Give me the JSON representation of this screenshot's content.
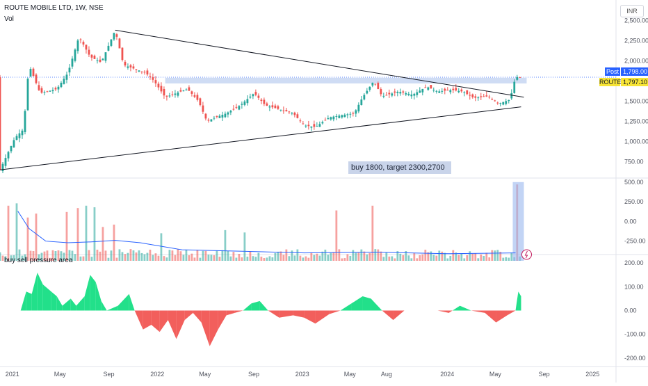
{
  "legend": {
    "title": "ROUTE MOBILE LTD, 1W, NSE",
    "volume_label": "Vol",
    "indicator_label": "buy sell pressure area"
  },
  "currency": "INR",
  "annotation": "buy 1800, target 2300,2700",
  "price_tags": {
    "post_label": "Post",
    "post_value": "1,798.00",
    "symbol_label": "ROUTE",
    "symbol_value": "1,797.10"
  },
  "colors": {
    "up": "#26a69a",
    "down": "#ef5350",
    "up_area": "#22e08a",
    "down_area": "#f25f5c",
    "line": "#2962ff",
    "annotation_bg": "#c9d4ea"
  },
  "chart_data": [
    {
      "type": "candlestick",
      "title": "ROUTE MOBILE LTD, 1W, NSE",
      "y_ticks": [
        "2,500.00",
        "2,250.00",
        "2,000.00",
        "1,750.00",
        "1,500.00",
        "1,250.00",
        "1,000.00",
        "750.00"
      ],
      "ylim": [
        600,
        2650
      ],
      "x_ticks": [
        "2021",
        "May",
        "Sep",
        "2022",
        "May",
        "Sep",
        "2023",
        "May",
        "Aug",
        "2024",
        "May",
        "Sep",
        "2025"
      ],
      "ohlc_points": [
        [
          "2020-12-01",
          650
        ],
        [
          "2021-01-08",
          1050
        ],
        [
          "2021-01-29",
          1150
        ],
        [
          "2021-02-12",
          1950
        ],
        [
          "2021-03-12",
          1600
        ],
        [
          "2021-04-23",
          1650
        ],
        [
          "2021-05-21",
          1850
        ],
        [
          "2021-06-18",
          2300
        ],
        [
          "2021-07-16",
          2050
        ],
        [
          "2021-08-13",
          1980
        ],
        [
          "2021-09-17",
          2380
        ],
        [
          "2021-10-08",
          1950
        ],
        [
          "2021-12-03",
          1850
        ],
        [
          "2021-12-24",
          1750
        ],
        [
          "2022-01-21",
          1550
        ],
        [
          "2022-03-18",
          1650
        ],
        [
          "2022-04-15",
          1500
        ],
        [
          "2022-05-06",
          1250
        ],
        [
          "2022-05-27",
          1300
        ],
        [
          "2022-06-24",
          1350
        ],
        [
          "2022-07-29",
          1450
        ],
        [
          "2022-09-02",
          1600
        ],
        [
          "2022-09-30",
          1450
        ],
        [
          "2022-11-04",
          1400
        ],
        [
          "2022-12-09",
          1350
        ],
        [
          "2023-01-06",
          1200
        ],
        [
          "2023-02-03",
          1180
        ],
        [
          "2023-03-10",
          1300
        ],
        [
          "2023-04-14",
          1330
        ],
        [
          "2023-05-12",
          1350
        ],
        [
          "2023-06-02",
          1550
        ],
        [
          "2023-06-30",
          1750
        ],
        [
          "2023-07-21",
          1560
        ],
        [
          "2023-09-01",
          1620
        ],
        [
          "2023-10-06",
          1580
        ],
        [
          "2023-11-10",
          1680
        ],
        [
          "2023-12-08",
          1620
        ],
        [
          "2024-01-12",
          1640
        ],
        [
          "2024-02-09",
          1620
        ],
        [
          "2024-03-08",
          1540
        ],
        [
          "2024-04-12",
          1560
        ],
        [
          "2024-05-10",
          1470
        ],
        [
          "2024-06-07",
          1520
        ],
        [
          "2024-06-21",
          1800
        ],
        [
          "2024-07-05",
          1797
        ]
      ],
      "resistance_zone": [
        1720,
        1790
      ],
      "trendlines": [
        {
          "from": [
            "2021-09-17",
            2380
          ],
          "to": [
            "2024-07-12",
            1550
          ]
        },
        {
          "from": [
            "2020-12-01",
            650
          ],
          "to": [
            "2024-07-05",
            1430
          ]
        }
      ],
      "last_price": 1797.1
    },
    {
      "type": "bar",
      "name": "Vol",
      "y_ticks": [
        "500.00",
        "250.00",
        "0.00",
        "-250.00"
      ],
      "ylim": [
        -500,
        560
      ],
      "spikes": [
        [
          "2020-12-25",
          200
        ],
        [
          "2021-01-15",
          230
        ],
        [
          "2021-02-12",
          50
        ],
        [
          "2021-03-05",
          100
        ],
        [
          "2021-05-21",
          120
        ],
        [
          "2021-06-18",
          170
        ],
        [
          "2021-07-09",
          200
        ],
        [
          "2021-07-30",
          180
        ],
        [
          "2021-08-20",
          -70
        ],
        [
          "2021-09-17",
          -40
        ],
        [
          "2022-01-14",
          -150
        ],
        [
          "2022-06-24",
          -110
        ],
        [
          "2022-08-12",
          -140
        ],
        [
          "2023-03-31",
          140
        ],
        [
          "2023-06-30",
          200
        ],
        [
          "2024-06-28",
          470
        ]
      ],
      "ma_line": [
        [
          "2021-01-15",
          130
        ],
        [
          "2021-02-12",
          -90
        ],
        [
          "2021-03-26",
          -250
        ],
        [
          "2021-05-21",
          -270
        ],
        [
          "2021-07-16",
          -260
        ],
        [
          "2021-09-17",
          -240
        ],
        [
          "2021-11-19",
          -270
        ],
        [
          "2022-03-04",
          -360
        ],
        [
          "2022-08-12",
          -380
        ],
        [
          "2023-01-06",
          -400
        ],
        [
          "2023-06-30",
          -390
        ],
        [
          "2024-01-05",
          -410
        ],
        [
          "2024-06-21",
          -400
        ]
      ]
    },
    {
      "type": "area",
      "name": "buy sell pressure area",
      "y_ticks": [
        "200.00",
        "100.00",
        "0.00",
        "-100.00",
        "-200.00"
      ],
      "ylim": [
        -230,
        230
      ],
      "values": [
        [
          "2021-01-22",
          0
        ],
        [
          "2021-02-05",
          80
        ],
        [
          "2021-02-19",
          70
        ],
        [
          "2021-03-05",
          160
        ],
        [
          "2021-03-19",
          110
        ],
        [
          "2021-04-09",
          80
        ],
        [
          "2021-04-23",
          60
        ],
        [
          "2021-05-07",
          20
        ],
        [
          "2021-05-28",
          50
        ],
        [
          "2021-06-11",
          20
        ],
        [
          "2021-07-02",
          60
        ],
        [
          "2021-07-16",
          150
        ],
        [
          "2021-07-30",
          120
        ],
        [
          "2021-08-13",
          40
        ],
        [
          "2021-08-27",
          0
        ],
        [
          "2021-09-24",
          20
        ],
        [
          "2021-10-22",
          70
        ],
        [
          "2021-11-05",
          0
        ],
        [
          "2021-11-26",
          -80
        ],
        [
          "2021-12-17",
          -60
        ],
        [
          "2022-01-07",
          -90
        ],
        [
          "2022-01-28",
          -40
        ],
        [
          "2022-02-18",
          -120
        ],
        [
          "2022-03-11",
          -40
        ],
        [
          "2022-04-01",
          -10
        ],
        [
          "2022-04-22",
          -50
        ],
        [
          "2022-05-13",
          -150
        ],
        [
          "2022-06-03",
          -80
        ],
        [
          "2022-06-24",
          -20
        ],
        [
          "2022-07-15",
          -10
        ],
        [
          "2022-08-05",
          0
        ],
        [
          "2022-08-26",
          30
        ],
        [
          "2022-09-16",
          40
        ],
        [
          "2022-10-07",
          0
        ],
        [
          "2022-11-04",
          -30
        ],
        [
          "2022-12-09",
          -20
        ],
        [
          "2023-01-06",
          -30
        ],
        [
          "2023-02-03",
          -55
        ],
        [
          "2023-03-10",
          -15
        ],
        [
          "2023-04-07",
          0
        ],
        [
          "2023-05-05",
          30
        ],
        [
          "2023-06-02",
          60
        ],
        [
          "2023-06-23",
          50
        ],
        [
          "2023-07-21",
          0
        ],
        [
          "2023-08-18",
          -40
        ],
        [
          "2023-09-15",
          0
        ],
        [
          "2023-10-27",
          0
        ],
        [
          "2023-12-08",
          0
        ],
        [
          "2024-01-05",
          -10
        ],
        [
          "2024-02-02",
          20
        ],
        [
          "2024-03-01",
          0
        ],
        [
          "2024-04-05",
          -10
        ],
        [
          "2024-05-03",
          -50
        ],
        [
          "2024-05-31",
          -20
        ],
        [
          "2024-06-21",
          0
        ],
        [
          "2024-06-28",
          80
        ],
        [
          "2024-07-05",
          60
        ]
      ]
    }
  ]
}
